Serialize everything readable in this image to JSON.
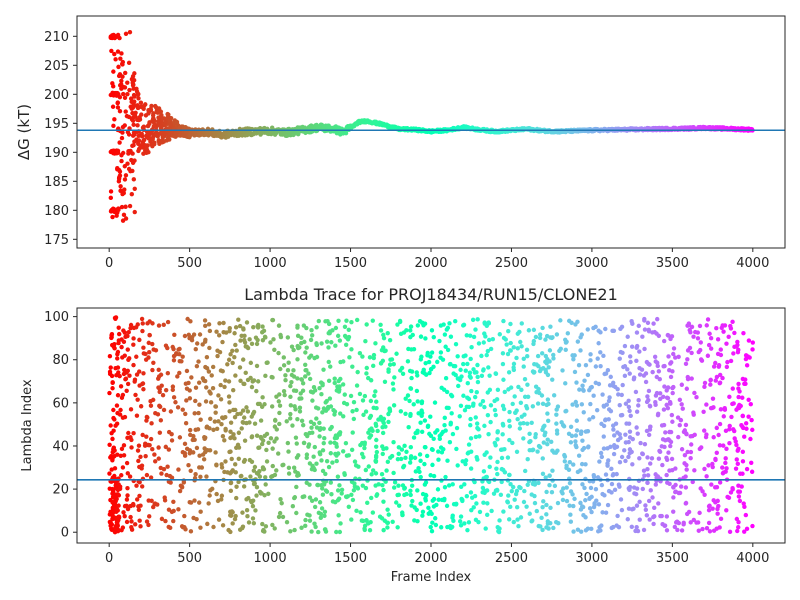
{
  "chart_data": [
    {
      "type": "scatter",
      "title": "",
      "xlabel": "",
      "ylabel": "ΔG (kT)",
      "xlim": [
        -200,
        4200
      ],
      "ylim": [
        173.5,
        213.5
      ],
      "xticks": [
        0,
        500,
        1000,
        1500,
        2000,
        2500,
        3000,
        3500,
        4000
      ],
      "yticks": [
        175,
        180,
        185,
        190,
        195,
        200,
        205,
        210
      ],
      "hline": 193.8,
      "hline_color": "#1f77b4",
      "colormap": "rainbow (red → violet along frame index)",
      "grid": false,
      "series_points": {
        "x_range": [
          0,
          4000
        ],
        "y_final": 193.8,
        "trace_anchors": [
          [
            140,
            197
          ],
          [
            200,
            194
          ],
          [
            300,
            194.5
          ],
          [
            400,
            194.2
          ],
          [
            500,
            193.3
          ],
          [
            600,
            193.6
          ],
          [
            700,
            193
          ],
          [
            800,
            193.4
          ],
          [
            900,
            193.6
          ],
          [
            1000,
            193.7
          ],
          [
            1100,
            193.4
          ],
          [
            1200,
            193.8
          ],
          [
            1300,
            194.3
          ],
          [
            1400,
            194
          ],
          [
            1450,
            193.5
          ],
          [
            1500,
            194.2
          ],
          [
            1550,
            195.2
          ],
          [
            1600,
            195.4
          ],
          [
            1700,
            194.8
          ],
          [
            1800,
            194
          ],
          [
            1900,
            193.9
          ],
          [
            2000,
            193.6
          ],
          [
            2100,
            193.8
          ],
          [
            2200,
            194.3
          ],
          [
            2300,
            193.9
          ],
          [
            2400,
            193.6
          ],
          [
            2500,
            193.8
          ],
          [
            2600,
            194
          ],
          [
            2700,
            193.7
          ],
          [
            2800,
            193.6
          ],
          [
            2900,
            193.7
          ],
          [
            3000,
            193.8
          ],
          [
            3200,
            193.9
          ],
          [
            3400,
            194
          ],
          [
            3600,
            194.1
          ],
          [
            3700,
            194.2
          ],
          [
            3800,
            194.1
          ],
          [
            4000,
            193.9
          ]
        ]
      }
    },
    {
      "type": "scatter",
      "title": "Lambda Trace for PROJ18434/RUN15/CLONE21",
      "xlabel": "Frame Index",
      "ylabel": "Lambda Index",
      "xlim": [
        -200,
        4200
      ],
      "ylim": [
        -5,
        104
      ],
      "xticks": [
        0,
        500,
        1000,
        1500,
        2000,
        2500,
        3000,
        3500,
        4000
      ],
      "yticks": [
        0,
        20,
        40,
        60,
        80,
        100
      ],
      "hline": 24.3,
      "hline_color": "#1f77b4",
      "colormap": "rainbow (red → violet along frame index)",
      "grid": false,
      "series_points": {
        "x_range": [
          0,
          4000
        ],
        "y_range": [
          0,
          99
        ],
        "approx_point_count": 2600
      }
    }
  ]
}
